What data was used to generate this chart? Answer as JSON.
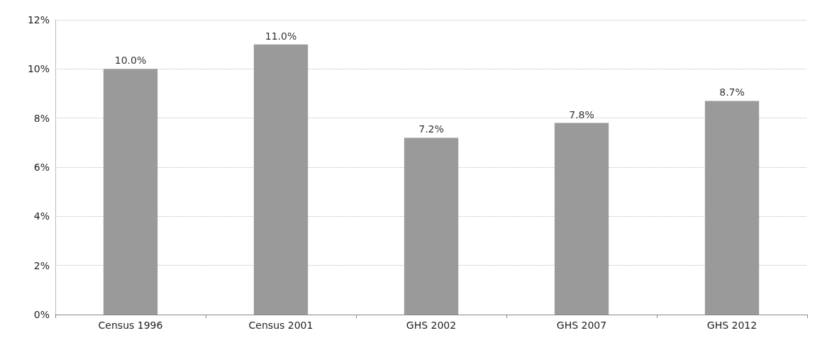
{
  "chart_data": {
    "type": "bar",
    "categories": [
      "Census 1996",
      "Census 2001",
      "GHS 2002",
      "GHS 2007",
      "GHS 2012"
    ],
    "values": [
      10.0,
      11.0,
      7.2,
      7.8,
      8.7
    ],
    "color": "#9a9a9a",
    "value_labels": [
      "10.0%",
      "11.0%",
      "7.2%",
      "7.8%",
      "8.7%"
    ],
    "ylim": [
      0,
      12
    ],
    "yticks": [
      {
        "value": 0,
        "label": "0%"
      },
      {
        "value": 2,
        "label": "2%"
      },
      {
        "value": 4,
        "label": "4%"
      },
      {
        "value": 6,
        "label": "6%"
      },
      {
        "value": 8,
        "label": "8%"
      },
      {
        "value": 10,
        "label": "10%"
      },
      {
        "value": 12,
        "label": "12%"
      }
    ],
    "grid": "y"
  }
}
